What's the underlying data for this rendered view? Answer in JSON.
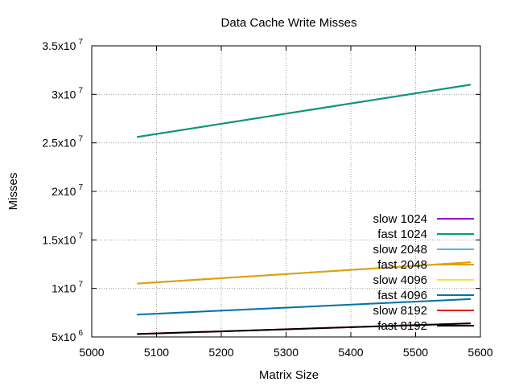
{
  "chart_data": {
    "type": "line",
    "title": "Data Cache Write Misses",
    "xlabel": "Matrix Size",
    "ylabel": "Misses",
    "xlim": [
      5000,
      5600
    ],
    "ylim": [
      5000000,
      35000000
    ],
    "x_ticks": [
      5000,
      5100,
      5200,
      5300,
      5400,
      5500,
      5600
    ],
    "x_tick_labels": [
      "5000",
      "5100",
      "5200",
      "5300",
      "5400",
      "5500",
      "5600"
    ],
    "y_ticks": [
      {
        "value": 5000000,
        "mantissa": "5x10",
        "exponent": "6"
      },
      {
        "value": 10000000,
        "mantissa": "1x10",
        "exponent": "7"
      },
      {
        "value": 15000000,
        "mantissa": "1.5x10",
        "exponent": "7"
      },
      {
        "value": 20000000,
        "mantissa": "2x10",
        "exponent": "7"
      },
      {
        "value": 25000000,
        "mantissa": "2.5x10",
        "exponent": "7"
      },
      {
        "value": 30000000,
        "mantissa": "3x10",
        "exponent": "7"
      },
      {
        "value": 35000000,
        "mantissa": "3.5x10",
        "exponent": "7"
      }
    ],
    "grid": true,
    "legend_position": "bottom-right",
    "series": [
      {
        "name": "slow 1024",
        "color": "#9400d3",
        "x": [
          5070,
          5585
        ],
        "y": [
          25600000,
          31000000
        ]
      },
      {
        "name": "fast 1024",
        "color": "#009e73",
        "x": [
          5070,
          5585
        ],
        "y": [
          25600000,
          31000000
        ]
      },
      {
        "name": "slow 2048",
        "color": "#56b4e9",
        "x": [
          5070,
          5585
        ],
        "y": [
          10500000,
          12700000
        ]
      },
      {
        "name": "fast 2048",
        "color": "#e69f00",
        "x": [
          5070,
          5585
        ],
        "y": [
          10500000,
          12700000
        ]
      },
      {
        "name": "slow 4096",
        "color": "#f0e442",
        "x": [
          5070,
          5585
        ],
        "y": [
          7300000,
          8900000
        ]
      },
      {
        "name": "fast 4096",
        "color": "#0072b2",
        "x": [
          5070,
          5585
        ],
        "y": [
          7300000,
          8900000
        ]
      },
      {
        "name": "slow 8192",
        "color": "#e51e10",
        "x": [
          5070,
          5585
        ],
        "y": [
          5300000,
          6400000
        ]
      },
      {
        "name": "fast 8192",
        "color": "#000000",
        "x": [
          5070,
          5585
        ],
        "y": [
          5300000,
          6400000
        ]
      }
    ]
  }
}
